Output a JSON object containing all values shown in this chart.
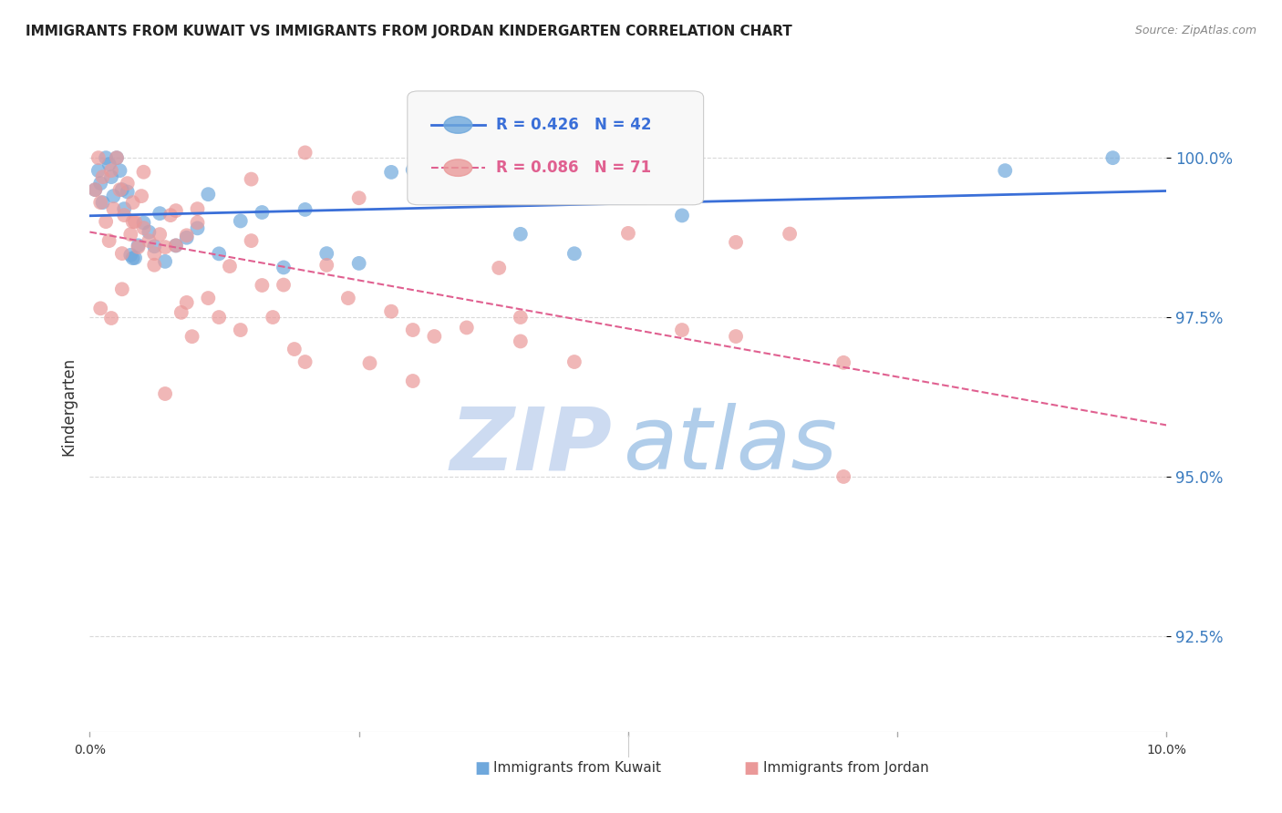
{
  "title": "IMMIGRANTS FROM KUWAIT VS IMMIGRANTS FROM JORDAN KINDERGARTEN CORRELATION CHART",
  "source": "Source: ZipAtlas.com",
  "ylabel": "Kindergarten",
  "xlim": [
    0.0,
    10.0
  ],
  "ylim": [
    91.0,
    101.2
  ],
  "kuwait_R": 0.426,
  "kuwait_N": 42,
  "jordan_R": 0.086,
  "jordan_N": 71,
  "kuwait_color": "#6fa8dc",
  "jordan_color": "#ea9999",
  "kuwait_line_color": "#3a6fd8",
  "jordan_line_color": "#e06090",
  "watermark_zip_color": "#c8d8f0",
  "watermark_atlas_color": "#a8c8e8",
  "yticks": [
    92.5,
    95.0,
    97.5,
    100.0
  ],
  "ytick_labels": [
    "92.5%",
    "95.0%",
    "97.5%",
    "100.0%"
  ],
  "ytick_color": "#3a7bbf",
  "grid_color": "#d0d0d0",
  "background_color": "white"
}
